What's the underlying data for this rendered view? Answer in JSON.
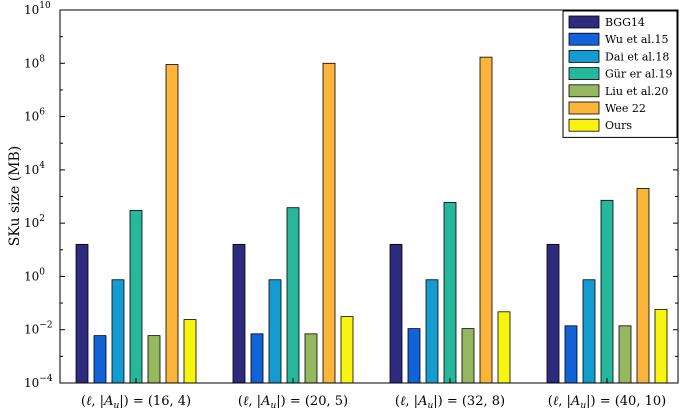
{
  "chart_data": {
    "type": "bar",
    "yscale": "log",
    "ylim": [
      0.0001,
      10000000000
    ],
    "ylabel": "SKu size (MB)",
    "xlabel": "",
    "grid": false,
    "legend_position": "top-right",
    "y_ticks": [
      {
        "value": 0.0001,
        "base": "10",
        "exp": "−4"
      },
      {
        "value": 0.01,
        "base": "10",
        "exp": "−2"
      },
      {
        "value": 1,
        "base": "10",
        "exp": "0"
      },
      {
        "value": 100,
        "base": "10",
        "exp": "2"
      },
      {
        "value": 10000,
        "base": "10",
        "exp": "4"
      },
      {
        "value": 1000000,
        "base": "10",
        "exp": "6"
      },
      {
        "value": 100000000,
        "base": "10",
        "exp": "8"
      },
      {
        "value": 10000000000,
        "base": "10",
        "exp": "10"
      }
    ],
    "categories": [
      "(ℓ, |A_u|) = (16, 4)",
      "(ℓ, |A_u|) = (20, 5)",
      "(ℓ, |A_u|) = (32, 8)",
      "(ℓ, |A_u|) = (40, 10)"
    ],
    "category_tuples": [
      "(16, 4)",
      "(20, 5)",
      "(32, 8)",
      "(40, 10)"
    ],
    "series": [
      {
        "name": "BGG14",
        "color": "#2e2a7d",
        "values": [
          16,
          16,
          16,
          16
        ]
      },
      {
        "name": "Wu et al.15",
        "color": "#1262d8",
        "values": [
          0.006,
          0.007,
          0.011,
          0.014
        ]
      },
      {
        "name": "Dai et al.18",
        "color": "#149bd0",
        "values": [
          0.75,
          0.75,
          0.75,
          0.75
        ]
      },
      {
        "name": "Gür er al.19",
        "color": "#27b79b",
        "values": [
          300,
          380,
          600,
          720
        ]
      },
      {
        "name": "Liu et al.20",
        "color": "#95b85f",
        "values": [
          0.006,
          0.007,
          0.011,
          0.014
        ]
      },
      {
        "name": "Wee 22",
        "color": "#fbb53b",
        "values": [
          90000000,
          100000000,
          170000000,
          2000
        ]
      },
      {
        "name": "Ours",
        "color": "#f7f50d",
        "values": [
          0.024,
          0.031,
          0.047,
          0.058
        ]
      }
    ]
  }
}
